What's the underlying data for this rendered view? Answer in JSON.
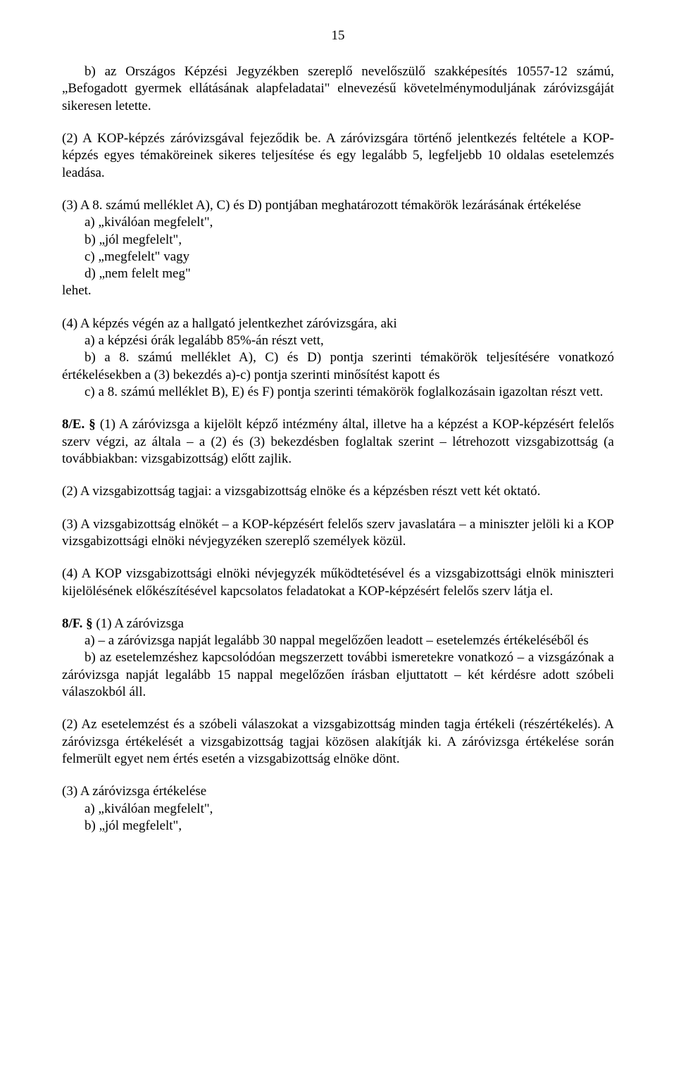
{
  "page_number": "15",
  "p1_a": "b) az Országos Képzési Jegyzékben szereplő nevelőszülő szakképesítés 10557-12 számú, „Befogadott gyermek ellátásának alapfeladatai\" elnevezésű követelménymoduljának záróvizsgáját sikeresen letette.",
  "p2": "(2) A KOP-képzés záróvizsgával fejeződik be.  A záróvizsgára történő jelentkezés feltétele a KOP-képzés egyes témaköreinek sikeres teljesítése és egy legalább 5, legfeljebb 10 oldalas esetelemzés leadása.",
  "p3_lead": "(3) A 8. számú melléklet A), C) és D) pontjában meghatározott témakörök lezárásának értékelése",
  "p3_a": "a) „kiválóan megfelelt\",",
  "p3_b": "b) „jól megfelelt\",",
  "p3_c": "c) „megfelelt\" vagy",
  "p3_d": "d) „nem felelt meg\"",
  "p3_tail": "lehet.",
  "p4_lead": "(4) A képzés végén az a hallgató jelentkezhet záróvizsgára, aki",
  "p4_a": "a) a képzési órák legalább 85%-án részt vett,",
  "p4_b": "b) a 8. számú melléklet A), C) és D) pontja szerinti témakörök teljesítésére vonatkozó értékelésekben a (3) bekezdés a)-c) pontja szerinti minősítést kapott és",
  "p4_c": "c) a 8. számú melléklet B), E) és F) pontja szerinti témakörök foglalkozásain igazoltan részt vett.",
  "p5_head": "8/E. §",
  "p5_body": " (1) A záróvizsga a kijelölt képző intézmény által, illetve ha a képzést a KOP-képzésért felelős szerv végzi, az általa – a (2) és (3) bekezdésben foglaltak szerint – létrehozott vizsgabizottság (a továbbiakban: vizsgabizottság) előtt zajlik.",
  "p6": "(2) A vizsgabizottság tagjai: a vizsgabizottság elnöke és a képzésben részt vett két oktató.",
  "p7": "(3) A vizsgabizottság elnökét – a KOP-képzésért felelős szerv javaslatára – a miniszter jelöli ki a KOP vizsgabizottsági elnöki névjegyzéken szereplő személyek közül.",
  "p8": "(4) A KOP vizsgabizottsági elnöki névjegyzék működtetésével és a vizsgabizottsági elnök miniszteri kijelölésének előkészítésével kapcsolatos feladatokat a KOP-képzésért felelős szerv látja el.",
  "p9_head": "8/F. §",
  "p9_body": " (1) A záróvizsga",
  "p9_a": "a) – a záróvizsga napját legalább 30 nappal megelőzően leadott – esetelemzés értékeléséből és",
  "p9_b": "b) az esetelemzéshez kapcsolódóan megszerzett további ismeretekre vonatkozó – a vizsgázónak a záróvizsga napját legalább 15 nappal megelőzően írásban eljuttatott – két kérdésre adott szóbeli válaszokból áll.",
  "p10": "(2) Az esetelemzést és a szóbeli válaszokat a vizsgabizottság minden tagja értékeli (részértékelés). A záróvizsga értékelését a vizsgabizottság tagjai közösen alakítják ki. A záróvizsga értékelése során felmerült egyet nem értés esetén a vizsgabizottság elnöke dönt.",
  "p11_lead": "(3) A záróvizsga értékelése",
  "p11_a": "a) „kiválóan megfelelt\",",
  "p11_b": "b) „jól megfelelt\","
}
